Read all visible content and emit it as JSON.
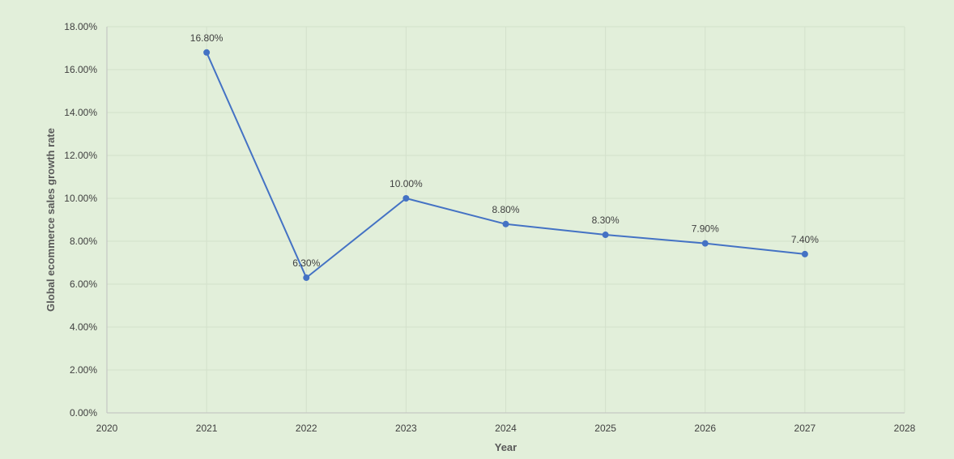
{
  "chart_data": {
    "type": "scatter",
    "title": "",
    "xlabel": "Year",
    "ylabel": "Global ecommerce sales growth rate",
    "xlim": [
      2020,
      2028
    ],
    "ylim": [
      0,
      18
    ],
    "x_ticks": [
      "2020",
      "2021",
      "2022",
      "2023",
      "2024",
      "2025",
      "2026",
      "2027",
      "2028"
    ],
    "y_ticks": [
      "0.00%",
      "2.00%",
      "4.00%",
      "6.00%",
      "8.00%",
      "10.00%",
      "12.00%",
      "14.00%",
      "16.00%",
      "18.00%"
    ],
    "grid": true,
    "legend": "none",
    "series": [
      {
        "x": [
          2021,
          2022,
          2023,
          2024,
          2025,
          2026,
          2027
        ],
        "y": [
          16.8,
          6.3,
          10.0,
          8.8,
          8.3,
          7.9,
          7.4
        ],
        "labels": [
          "16.80%",
          "6.30%",
          "10.00%",
          "8.80%",
          "8.30%",
          "7.90%",
          "7.40%"
        ],
        "color": "#4472c4",
        "style": "line-with-markers"
      }
    ]
  },
  "colors": {
    "background": "#e2efda",
    "grid": "#d3e0cb",
    "axis": "#bfbfbf",
    "series": "#4472c4"
  }
}
